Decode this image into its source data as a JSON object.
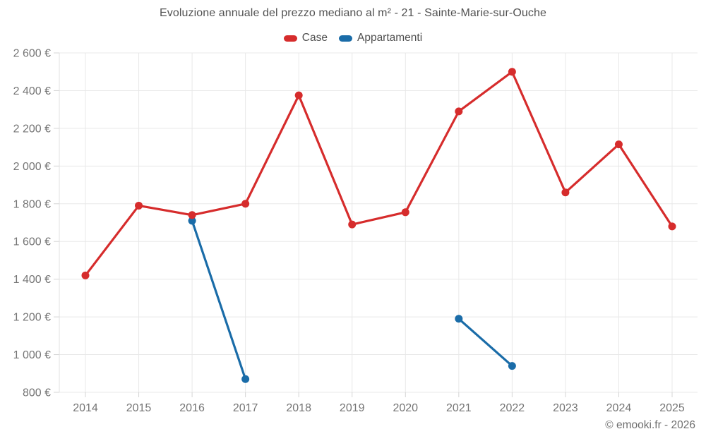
{
  "title": "Evoluzione annuale del prezzo mediano al m² - 21 - Sainte-Marie-sur-Ouche",
  "footer": "© emooki.fr - 2026",
  "legend": {
    "items": [
      {
        "label": "Case",
        "color": "#d62c2c"
      },
      {
        "label": "Appartamenti",
        "color": "#1a6ca8"
      }
    ]
  },
  "colors": {
    "case_red": "#d62c2c",
    "appartamenti_blue": "#1a6ca8",
    "gridline": "#e8e8e8",
    "axis_border": "#e0e0e0",
    "tick": "#d4d4d4",
    "axis_label": "#757575"
  },
  "chart_data": {
    "type": "line",
    "title": "Evoluzione annuale del prezzo mediano al m² - 21 - Sainte-Marie-sur-Ouche",
    "categories": [
      "2014",
      "2015",
      "2016",
      "2017",
      "2018",
      "2019",
      "2020",
      "2021",
      "2022",
      "2023",
      "2024",
      "2025"
    ],
    "series": [
      {
        "name": "Case",
        "color": "#d62c2c",
        "values": [
          1420,
          1790,
          1740,
          1800,
          2375,
          1690,
          1755,
          2290,
          2500,
          1860,
          2115,
          1680
        ]
      },
      {
        "name": "Appartamenti",
        "color": "#1a6ca8",
        "values": [
          null,
          null,
          1710,
          870,
          null,
          null,
          null,
          1190,
          940,
          null,
          null,
          null
        ]
      }
    ],
    "xlabel": "",
    "ylabel": "",
    "ylim": [
      800,
      2600
    ],
    "ytick_step": 200,
    "ytick_labels": [
      "800 €",
      "1 000 €",
      "1 200 €",
      "1 400 €",
      "1 600 €",
      "1 800 €",
      "2 000 €",
      "2 200 €",
      "2 400 €",
      "2 600 €"
    ],
    "grid": true,
    "legend_position": "top"
  }
}
